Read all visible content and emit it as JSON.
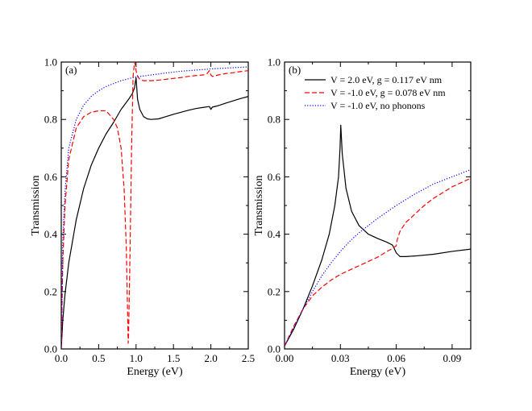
{
  "chart_data": [
    {
      "type": "line",
      "panel_label": "(a)",
      "xlabel": "Energy (eV)",
      "ylabel": "Transmission",
      "xlim": [
        0,
        2.5
      ],
      "ylim": [
        0,
        1.0
      ],
      "xticks": [
        0.0,
        0.5,
        1.0,
        1.5,
        2.0,
        2.5
      ],
      "xtick_labels": [
        "0.0",
        "0.5",
        "1.0",
        "1.5",
        "2.0",
        "2.5"
      ],
      "yticks": [
        0.0,
        0.2,
        0.4,
        0.6,
        0.8,
        1.0
      ],
      "ytick_labels": [
        "0.0",
        "0.2",
        "0.4",
        "0.6",
        "0.8",
        "1.0"
      ],
      "series": [
        {
          "name": "V = 2.0 eV, g = 0.117 eV nm",
          "color": "#000000",
          "dash": "solid",
          "x": [
            0,
            0.02,
            0.05,
            0.1,
            0.2,
            0.3,
            0.4,
            0.5,
            0.6,
            0.7,
            0.8,
            0.9,
            0.95,
            0.98,
            0.99,
            1.0,
            1.02,
            1.05,
            1.1,
            1.15,
            1.2,
            1.3,
            1.4,
            1.5,
            1.6,
            1.7,
            1.8,
            1.9,
            1.98,
            2.0,
            2.02,
            2.1,
            2.2,
            2.3,
            2.4,
            2.5
          ],
          "y": [
            0.0,
            0.1,
            0.19,
            0.3,
            0.45,
            0.56,
            0.64,
            0.7,
            0.75,
            0.79,
            0.835,
            0.87,
            0.89,
            0.91,
            0.93,
            0.945,
            0.87,
            0.835,
            0.81,
            0.802,
            0.8,
            0.802,
            0.81,
            0.818,
            0.825,
            0.832,
            0.838,
            0.842,
            0.845,
            0.835,
            0.843,
            0.848,
            0.857,
            0.865,
            0.873,
            0.88
          ]
        },
        {
          "name": "V = -1.0 eV, g = 0.078 eV nm",
          "color": "#ff0000",
          "dash": "dashed",
          "x": [
            0,
            0.02,
            0.05,
            0.1,
            0.2,
            0.3,
            0.4,
            0.5,
            0.6,
            0.7,
            0.75,
            0.8,
            0.84,
            0.87,
            0.885,
            0.895,
            0.9,
            0.92,
            0.94,
            0.96,
            0.98,
            0.99,
            1.0,
            1.02,
            1.05,
            1.1,
            1.2,
            1.3,
            1.4,
            1.5,
            1.6,
            1.7,
            1.8,
            1.9,
            1.95,
            1.98,
            2.0,
            2.02,
            2.1,
            2.2,
            2.3,
            2.4,
            2.5
          ],
          "y": [
            0.0,
            0.3,
            0.5,
            0.66,
            0.77,
            0.81,
            0.825,
            0.83,
            0.83,
            0.8,
            0.77,
            0.7,
            0.56,
            0.35,
            0.15,
            0.02,
            0.05,
            0.35,
            0.7,
            0.95,
            1.0,
            0.99,
            0.97,
            0.95,
            0.94,
            0.935,
            0.935,
            0.937,
            0.94,
            0.943,
            0.946,
            0.95,
            0.953,
            0.955,
            0.96,
            0.97,
            0.955,
            0.95,
            0.955,
            0.96,
            0.963,
            0.967,
            0.97
          ]
        },
        {
          "name": "V = -1.0 eV, no phonons",
          "color": "#0000ff",
          "dash": "dotted",
          "x": [
            0,
            0.02,
            0.05,
            0.1,
            0.2,
            0.3,
            0.4,
            0.5,
            0.6,
            0.7,
            0.8,
            0.9,
            1.0,
            1.2,
            1.4,
            1.6,
            1.8,
            2.0,
            2.2,
            2.5
          ],
          "y": [
            0.0,
            0.38,
            0.55,
            0.7,
            0.8,
            0.85,
            0.88,
            0.9,
            0.915,
            0.925,
            0.935,
            0.942,
            0.948,
            0.955,
            0.962,
            0.968,
            0.972,
            0.976,
            0.979,
            0.983
          ]
        }
      ]
    },
    {
      "type": "line",
      "panel_label": "(b)",
      "xlabel": "Energy (eV)",
      "ylabel": "Transmission",
      "xlim": [
        0,
        0.1
      ],
      "ylim": [
        0,
        1.0
      ],
      "xticks": [
        0.0,
        0.03,
        0.06,
        0.09
      ],
      "xtick_labels": [
        "0.00",
        "0.03",
        "0.06",
        "0.09"
      ],
      "yticks": [
        0.0,
        0.2,
        0.4,
        0.6,
        0.8,
        1.0
      ],
      "ytick_labels": [
        "0.0",
        "0.2",
        "0.4",
        "0.6",
        "0.8",
        "1.0"
      ],
      "legend_position": "top-right",
      "series": [
        {
          "name": "V = 2.0 eV, g = 0.117 eV nm",
          "color": "#000000",
          "dash": "solid",
          "x": [
            0,
            0.005,
            0.01,
            0.015,
            0.02,
            0.024,
            0.027,
            0.029,
            0.0298,
            0.0302,
            0.031,
            0.033,
            0.036,
            0.04,
            0.045,
            0.05,
            0.055,
            0.058,
            0.06,
            0.062,
            0.065,
            0.07,
            0.08,
            0.09,
            0.1
          ],
          "y": [
            0.01,
            0.07,
            0.14,
            0.22,
            0.31,
            0.4,
            0.5,
            0.6,
            0.7,
            0.78,
            0.68,
            0.56,
            0.48,
            0.43,
            0.4,
            0.385,
            0.372,
            0.362,
            0.335,
            0.322,
            0.322,
            0.324,
            0.33,
            0.34,
            0.348
          ]
        },
        {
          "name": "V = -1.0 eV, g = 0.078 eV nm",
          "color": "#ff0000",
          "dash": "dashed",
          "x": [
            0,
            0.005,
            0.01,
            0.015,
            0.02,
            0.025,
            0.03,
            0.035,
            0.04,
            0.045,
            0.05,
            0.055,
            0.058,
            0.06,
            0.0605,
            0.062,
            0.065,
            0.07,
            0.075,
            0.08,
            0.085,
            0.09,
            0.095,
            0.1
          ],
          "y": [
            0.01,
            0.08,
            0.14,
            0.185,
            0.215,
            0.24,
            0.26,
            0.275,
            0.29,
            0.305,
            0.32,
            0.34,
            0.35,
            0.36,
            0.38,
            0.41,
            0.44,
            0.47,
            0.5,
            0.525,
            0.545,
            0.565,
            0.58,
            0.595
          ]
        },
        {
          "name": "V = -1.0 eV, no phonons",
          "color": "#0000ff",
          "dash": "dotted",
          "x": [
            0,
            0.005,
            0.01,
            0.015,
            0.02,
            0.025,
            0.03,
            0.035,
            0.04,
            0.045,
            0.05,
            0.06,
            0.07,
            0.08,
            0.09,
            0.1
          ],
          "y": [
            0.01,
            0.075,
            0.14,
            0.2,
            0.255,
            0.3,
            0.34,
            0.375,
            0.405,
            0.43,
            0.455,
            0.5,
            0.54,
            0.575,
            0.6,
            0.625
          ]
        }
      ]
    }
  ]
}
